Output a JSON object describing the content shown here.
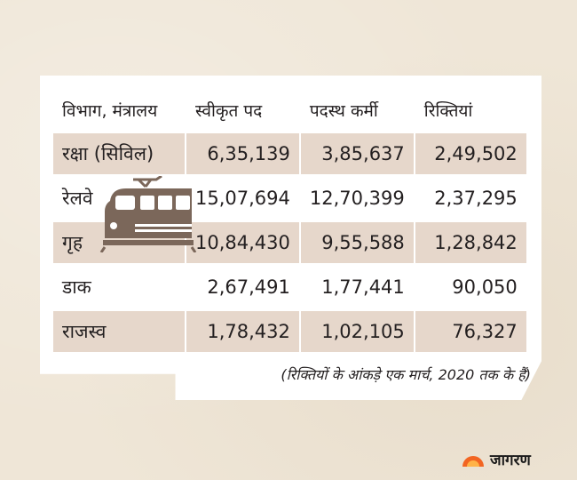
{
  "table": {
    "headers": [
      "विभाग, मंत्रालय",
      "स्वीकृत पद",
      "पदस्थ कर्मी",
      "रिक्तियां"
    ],
    "rows": [
      [
        "रक्षा (सिविल)",
        "6,35,139",
        "3,85,637",
        "2,49,502"
      ],
      [
        "रेलवे",
        "15,07,694",
        "12,70,399",
        "2,37,295"
      ],
      [
        "गृह",
        "10,84,430",
        "9,55,588",
        "1,28,842"
      ],
      [
        "डाक",
        "2,67,491",
        "1,77,441",
        "90,050"
      ],
      [
        "राजस्व",
        "1,78,432",
        "1,02,105",
        "76,327"
      ]
    ]
  },
  "footnote": "(रिक्तियों के आंकड़े एक मार्च, 2020 तक के हैं)",
  "brand": {
    "name": "जागरण",
    "accent": "#f26522"
  },
  "colors": {
    "row_shade": "#e6d7cb",
    "background": "#efe6d7",
    "train": "#7b675a"
  },
  "icons": [
    "train-icon",
    "jagran-sun-logo-icon"
  ]
}
